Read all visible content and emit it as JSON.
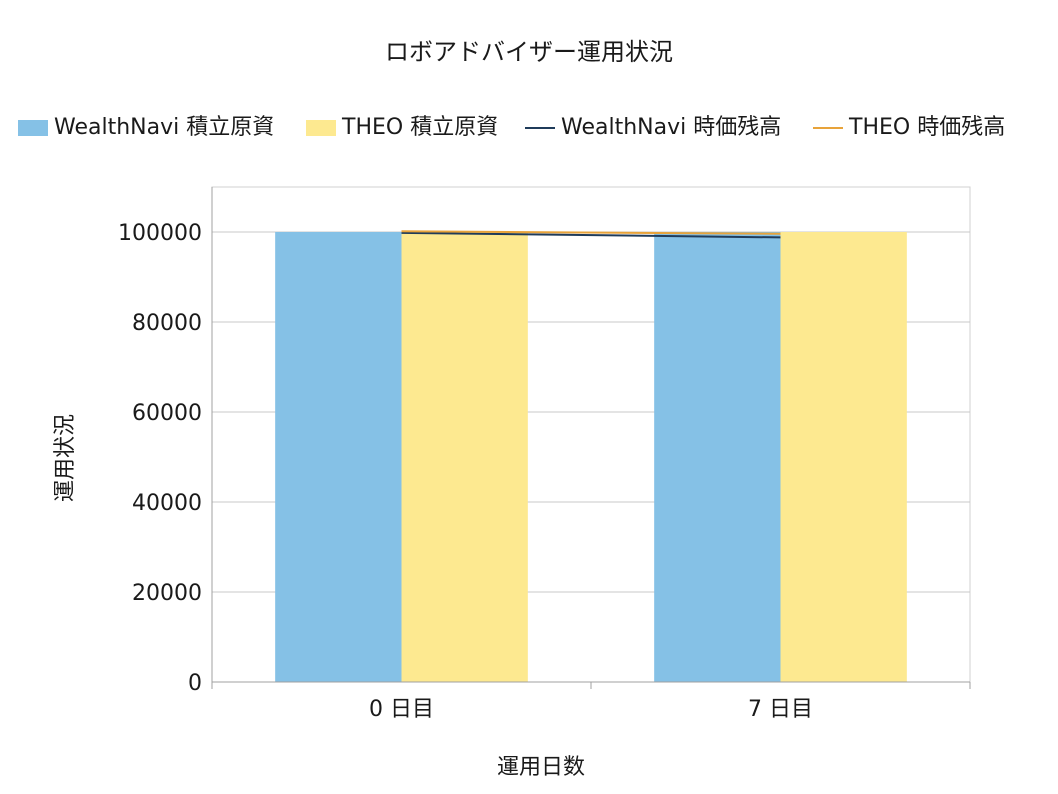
{
  "chart_data": {
    "type": "bar",
    "title": "ロボアドバイザー運用状況",
    "xlabel": "運用日数",
    "ylabel": "運用状況",
    "categories": [
      "0 日目",
      "7 日目"
    ],
    "ylim": [
      0,
      110000
    ],
    "yticks": [
      0,
      20000,
      40000,
      60000,
      80000,
      100000
    ],
    "grid": true,
    "legend_position": "top",
    "series": [
      {
        "name": "WealthNavi 積立原資",
        "kind": "bar",
        "color": "#85c1e6",
        "values": [
          100000,
          100000
        ]
      },
      {
        "name": "THEO 積立原資",
        "kind": "bar",
        "color": "#fde990",
        "values": [
          100000,
          100000
        ]
      },
      {
        "name": "WealthNavi 時価残高",
        "kind": "line",
        "color": "#1f3b5a",
        "values": [
          99800,
          98800
        ]
      },
      {
        "name": "THEO 時価残高",
        "kind": "line",
        "color": "#e8a33a",
        "values": [
          100150,
          99600
        ]
      }
    ]
  }
}
